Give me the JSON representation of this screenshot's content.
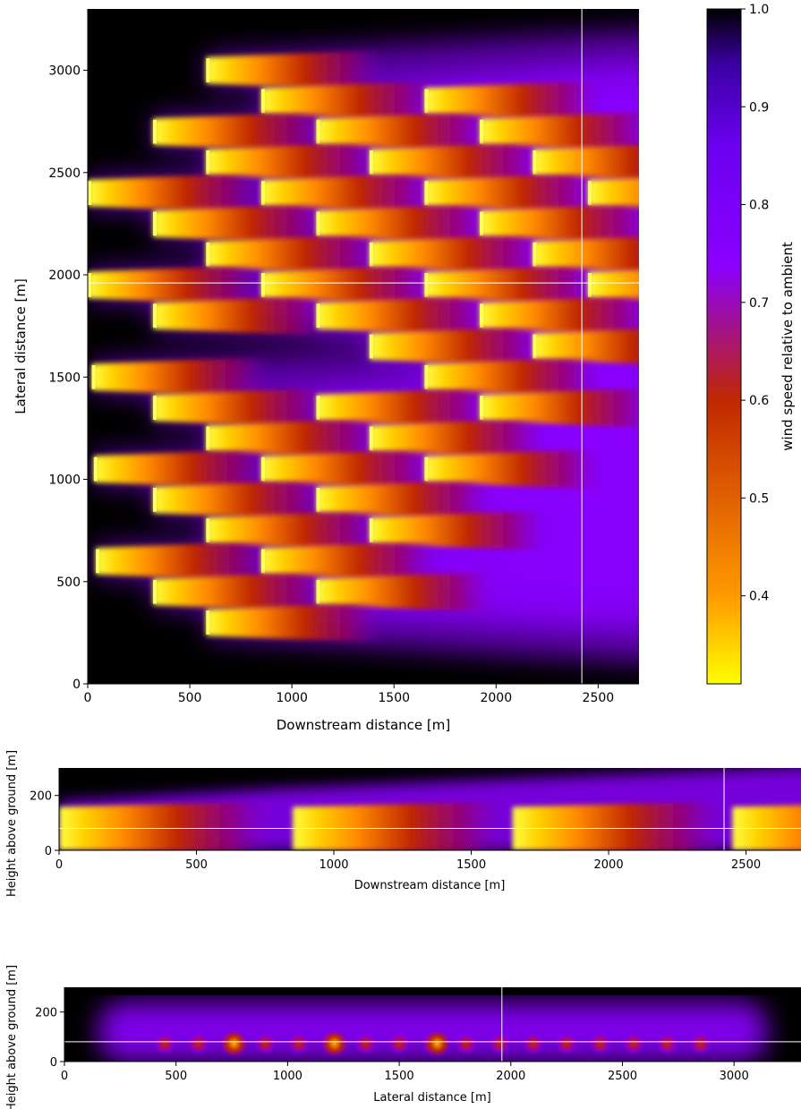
{
  "colorscale": {
    "name": "gnuplot2_r",
    "stops": [
      "#ffff00",
      "#ff9a00",
      "#c02800",
      "#7a009e",
      "#8a00ff",
      "#4a00cc",
      "#000000"
    ],
    "range": [
      0.31,
      1.0
    ]
  },
  "chart_data": [
    {
      "type": "heatmap",
      "title": "",
      "xlabel": "Downstream distance [m]",
      "ylabel": "Lateral distance [m]",
      "xlim": [
        0,
        2700
      ],
      "ylim": [
        0,
        3300
      ],
      "xticks": [
        "0",
        "500",
        "1000",
        "1500",
        "2000",
        "2500"
      ],
      "yticks": [
        "0",
        "500",
        "1000",
        "1500",
        "2000",
        "2500",
        "3000"
      ],
      "crosshair": {
        "x": 2420,
        "y": 1960
      },
      "turbines": [
        {
          "x": 580,
          "y": 3000
        },
        {
          "x": 850,
          "y": 2850
        },
        {
          "x": 1650,
          "y": 2850
        },
        {
          "x": 320,
          "y": 2700
        },
        {
          "x": 1120,
          "y": 2700
        },
        {
          "x": 1920,
          "y": 2700
        },
        {
          "x": 580,
          "y": 2550
        },
        {
          "x": 1380,
          "y": 2550
        },
        {
          "x": 2180,
          "y": 2550
        },
        {
          "x": 0,
          "y": 2400
        },
        {
          "x": 850,
          "y": 2400
        },
        {
          "x": 1650,
          "y": 2400
        },
        {
          "x": 2450,
          "y": 2400
        },
        {
          "x": 320,
          "y": 2250
        },
        {
          "x": 1120,
          "y": 2250
        },
        {
          "x": 1920,
          "y": 2250
        },
        {
          "x": 580,
          "y": 2100
        },
        {
          "x": 1380,
          "y": 2100
        },
        {
          "x": 2180,
          "y": 2100
        },
        {
          "x": 0,
          "y": 1950
        },
        {
          "x": 850,
          "y": 1950
        },
        {
          "x": 1650,
          "y": 1950
        },
        {
          "x": 2450,
          "y": 1950
        },
        {
          "x": 320,
          "y": 1800
        },
        {
          "x": 1120,
          "y": 1800
        },
        {
          "x": 1920,
          "y": 1800
        },
        {
          "x": 1380,
          "y": 1650
        },
        {
          "x": 2180,
          "y": 1650
        },
        {
          "x": 20,
          "y": 1500
        },
        {
          "x": 1650,
          "y": 1500
        },
        {
          "x": 320,
          "y": 1350
        },
        {
          "x": 1120,
          "y": 1350
        },
        {
          "x": 1920,
          "y": 1350
        },
        {
          "x": 580,
          "y": 1200
        },
        {
          "x": 1380,
          "y": 1200
        },
        {
          "x": 30,
          "y": 1050
        },
        {
          "x": 850,
          "y": 1050
        },
        {
          "x": 1650,
          "y": 1050
        },
        {
          "x": 320,
          "y": 900
        },
        {
          "x": 1120,
          "y": 900
        },
        {
          "x": 580,
          "y": 750
        },
        {
          "x": 1380,
          "y": 750
        },
        {
          "x": 40,
          "y": 600
        },
        {
          "x": 850,
          "y": 600
        },
        {
          "x": 320,
          "y": 450
        },
        {
          "x": 1120,
          "y": 450
        },
        {
          "x": 580,
          "y": 300
        }
      ]
    },
    {
      "type": "heatmap",
      "title": "",
      "xlabel": "Downstream distance [m]",
      "ylabel": "Height above ground [m]",
      "xlim": [
        0,
        2700
      ],
      "ylim": [
        0,
        300
      ],
      "xticks": [
        "0",
        "500",
        "1000",
        "1500",
        "2000",
        "2500"
      ],
      "yticks": [
        "0",
        "200"
      ],
      "crosshair": {
        "x": 2420,
        "y": 80
      },
      "hub_height": 80,
      "turbines_x": [
        0,
        850,
        1650,
        2450
      ]
    },
    {
      "type": "heatmap",
      "title": "",
      "xlabel": "Lateral distance [m]",
      "ylabel": "Height above ground [m]",
      "xlim": [
        0,
        3300
      ],
      "ylim": [
        0,
        300
      ],
      "xticks": [
        "0",
        "500",
        "1000",
        "1500",
        "2000",
        "2500",
        "3000"
      ],
      "yticks": [
        "0",
        "200"
      ],
      "crosshair": {
        "x": 1960,
        "y": 80
      },
      "hub_height": 80,
      "wakes_y": [
        450,
        600,
        750,
        900,
        1050,
        1200,
        1350,
        1500,
        1650,
        1800,
        1950,
        2100,
        2250,
        2400,
        2550,
        2700,
        2850
      ],
      "strong_wakes_y": [
        760,
        1210,
        1670
      ]
    }
  ],
  "colorbar": {
    "label": "wind speed relative to ambient",
    "ticks": [
      "0.4",
      "0.5",
      "0.6",
      "0.7",
      "0.8",
      "0.9",
      "1.0"
    ],
    "tick_values": [
      0.4,
      0.5,
      0.6,
      0.7,
      0.8,
      0.9,
      1.0
    ]
  }
}
